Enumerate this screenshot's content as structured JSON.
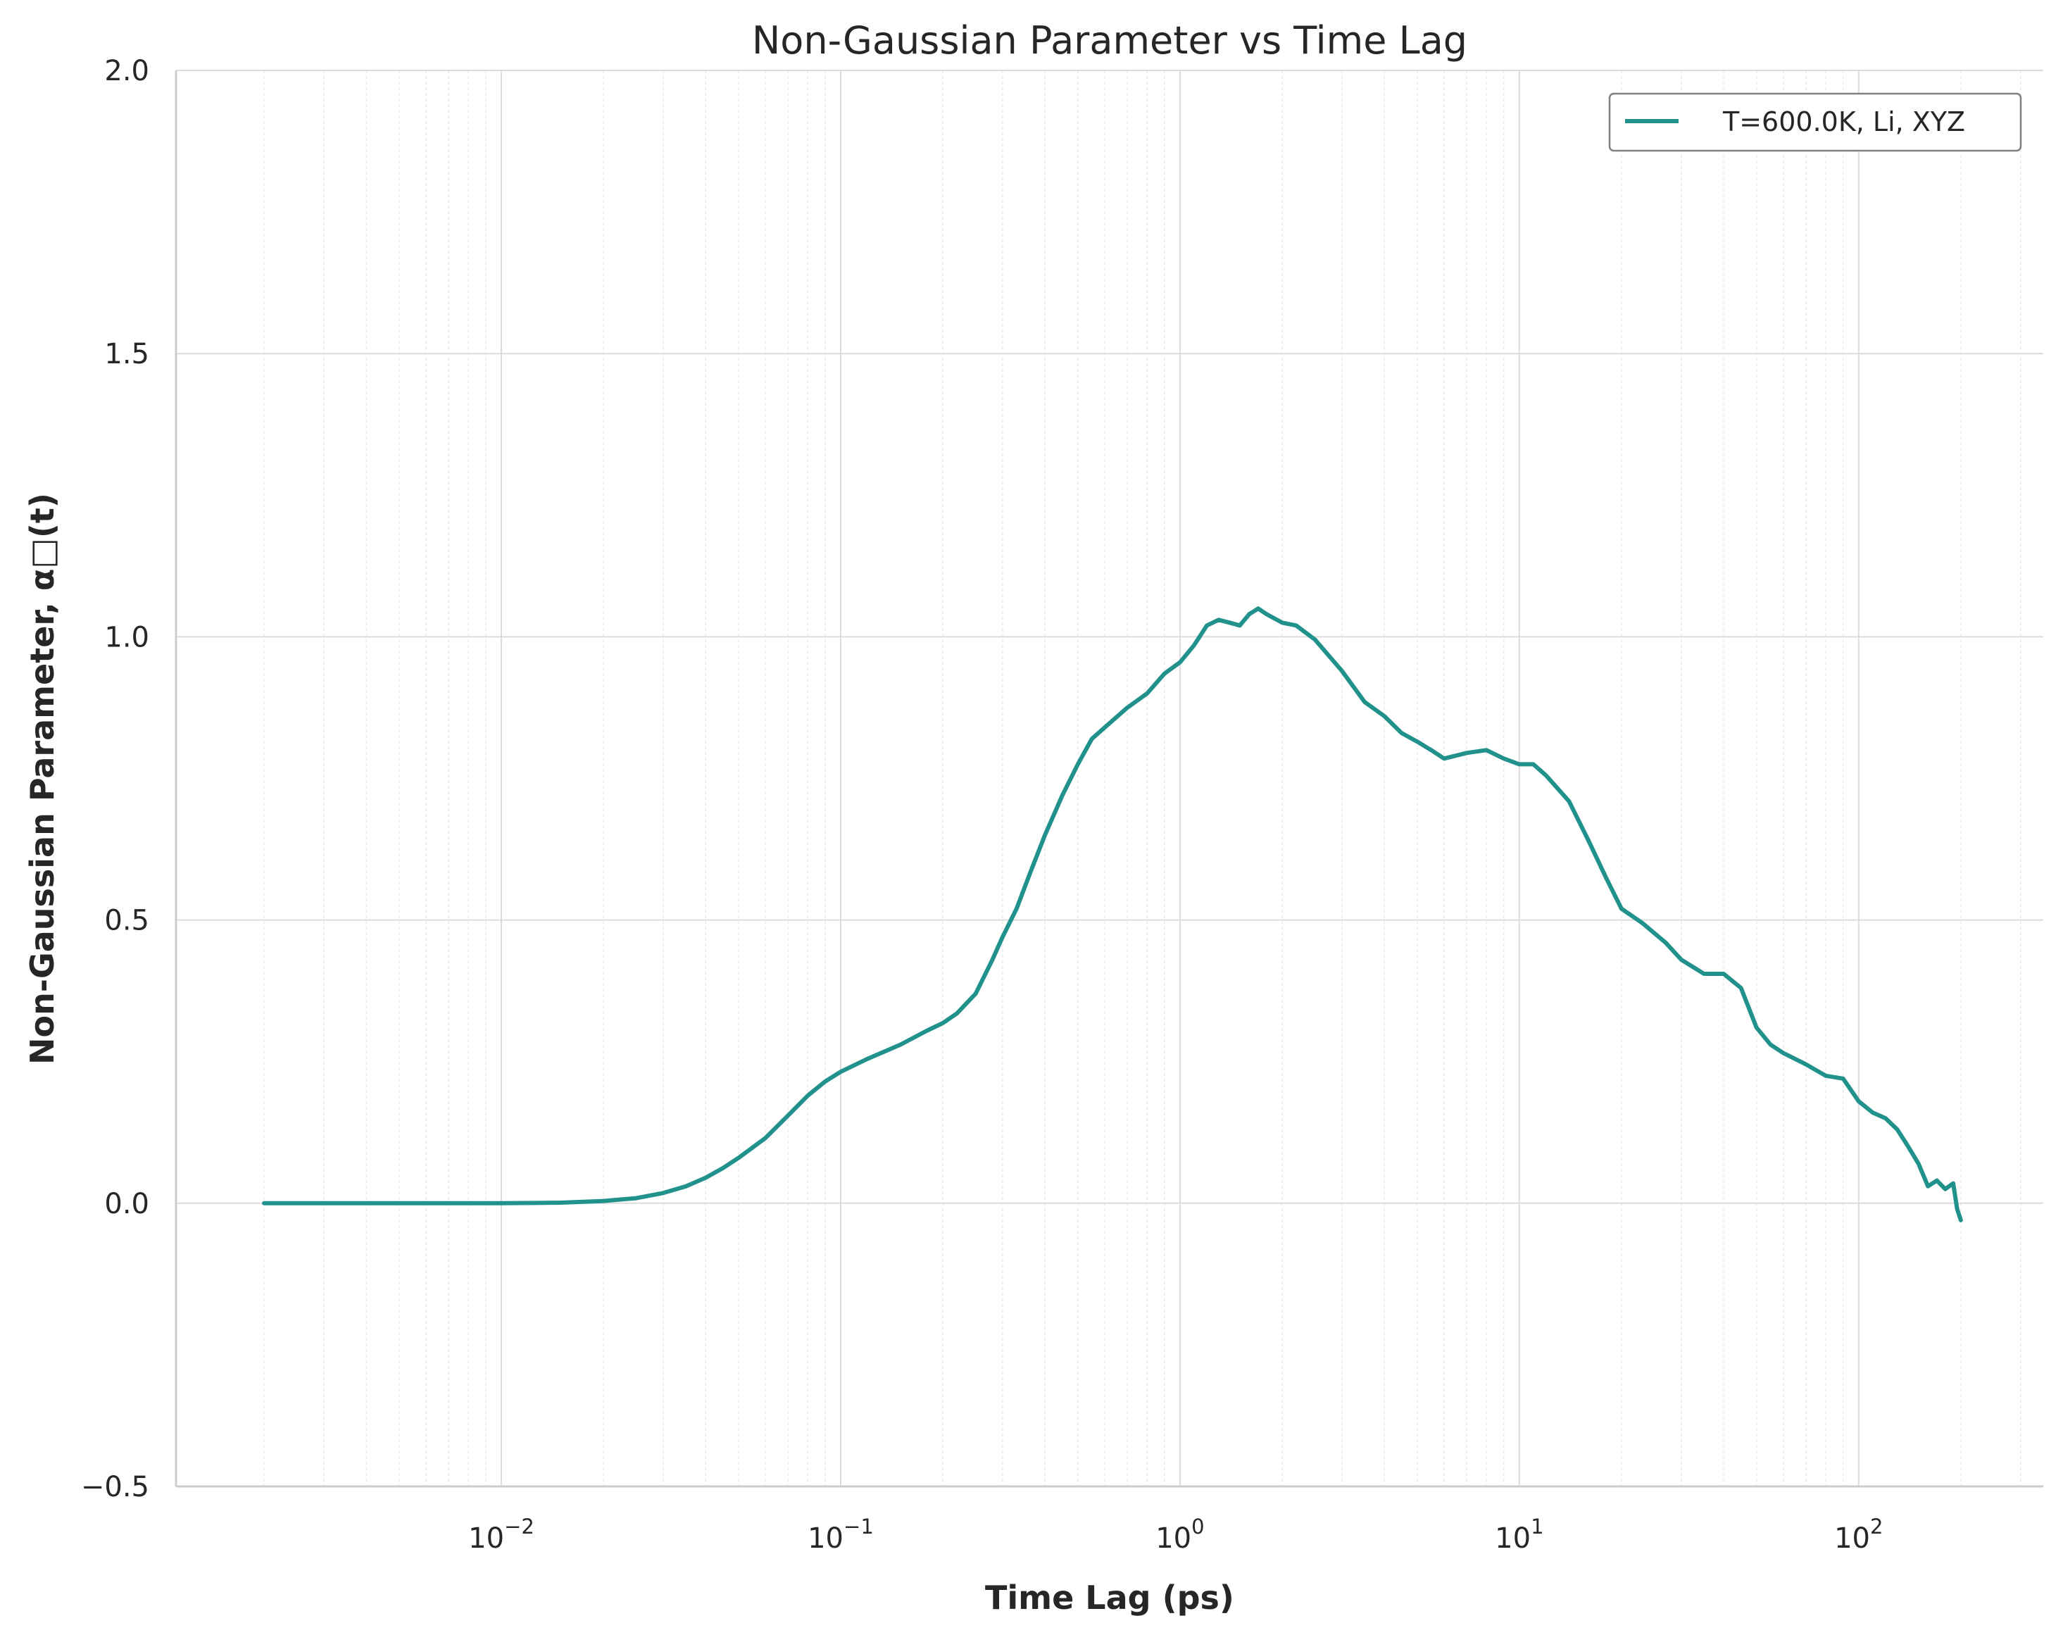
{
  "chart_data": {
    "type": "line",
    "title": "Non-Gaussian Parameter vs Time Lag",
    "xlabel": "Time Lag (ps)",
    "ylabel": "Non-Gaussian Parameter, α□(t)",
    "x_scale": "log",
    "xlim": [
      0.0011,
      350
    ],
    "ylim": [
      -0.5,
      2.0
    ],
    "grid": true,
    "legend_position": "top-right",
    "x_ticks": [
      {
        "base": "10",
        "exp": "−2",
        "value": 0.01
      },
      {
        "base": "10",
        "exp": "−1",
        "value": 0.1
      },
      {
        "base": "10",
        "exp": "0",
        "value": 1
      },
      {
        "base": "10",
        "exp": "1",
        "value": 10
      },
      {
        "base": "10",
        "exp": "2",
        "value": 100
      }
    ],
    "y_ticks": [
      {
        "label": "−0.5",
        "value": -0.5
      },
      {
        "label": "0.0",
        "value": 0.0
      },
      {
        "label": "0.5",
        "value": 0.5
      },
      {
        "label": "1.0",
        "value": 1.0
      },
      {
        "label": "1.5",
        "value": 1.5
      },
      {
        "label": "2.0",
        "value": 2.0
      }
    ],
    "series": [
      {
        "name": "T=600.0K, Li, XYZ",
        "color": "#21918c",
        "points": [
          [
            0.002,
            0.0
          ],
          [
            0.005,
            0.0
          ],
          [
            0.01,
            0.0
          ],
          [
            0.015,
            0.001
          ],
          [
            0.02,
            0.004
          ],
          [
            0.025,
            0.009
          ],
          [
            0.03,
            0.018
          ],
          [
            0.035,
            0.03
          ],
          [
            0.04,
            0.045
          ],
          [
            0.045,
            0.062
          ],
          [
            0.05,
            0.08
          ],
          [
            0.06,
            0.115
          ],
          [
            0.07,
            0.155
          ],
          [
            0.08,
            0.19
          ],
          [
            0.09,
            0.215
          ],
          [
            0.1,
            0.232
          ],
          [
            0.12,
            0.255
          ],
          [
            0.15,
            0.28
          ],
          [
            0.18,
            0.305
          ],
          [
            0.2,
            0.318
          ],
          [
            0.22,
            0.335
          ],
          [
            0.25,
            0.37
          ],
          [
            0.28,
            0.43
          ],
          [
            0.3,
            0.47
          ],
          [
            0.33,
            0.52
          ],
          [
            0.36,
            0.58
          ],
          [
            0.4,
            0.65
          ],
          [
            0.45,
            0.72
          ],
          [
            0.5,
            0.775
          ],
          [
            0.55,
            0.82
          ],
          [
            0.6,
            0.84
          ],
          [
            0.7,
            0.875
          ],
          [
            0.8,
            0.9
          ],
          [
            0.9,
            0.935
          ],
          [
            1.0,
            0.955
          ],
          [
            1.1,
            0.985
          ],
          [
            1.2,
            1.02
          ],
          [
            1.3,
            1.03
          ],
          [
            1.4,
            1.025
          ],
          [
            1.5,
            1.02
          ],
          [
            1.6,
            1.04
          ],
          [
            1.7,
            1.05
          ],
          [
            1.8,
            1.04
          ],
          [
            2.0,
            1.025
          ],
          [
            2.2,
            1.02
          ],
          [
            2.5,
            0.995
          ],
          [
            3.0,
            0.94
          ],
          [
            3.5,
            0.885
          ],
          [
            4.0,
            0.86
          ],
          [
            4.5,
            0.83
          ],
          [
            5.0,
            0.815
          ],
          [
            5.5,
            0.8
          ],
          [
            6.0,
            0.785
          ],
          [
            7.0,
            0.795
          ],
          [
            8.0,
            0.8
          ],
          [
            9.0,
            0.785
          ],
          [
            10.0,
            0.775
          ],
          [
            11.0,
            0.775
          ],
          [
            12.0,
            0.755
          ],
          [
            14.0,
            0.71
          ],
          [
            16.0,
            0.64
          ],
          [
            18.0,
            0.575
          ],
          [
            20.0,
            0.52
          ],
          [
            23.0,
            0.495
          ],
          [
            27.0,
            0.46
          ],
          [
            30.0,
            0.43
          ],
          [
            35.0,
            0.405
          ],
          [
            40.0,
            0.405
          ],
          [
            45.0,
            0.38
          ],
          [
            50.0,
            0.31
          ],
          [
            55.0,
            0.28
          ],
          [
            60.0,
            0.265
          ],
          [
            70.0,
            0.245
          ],
          [
            80.0,
            0.225
          ],
          [
            90.0,
            0.22
          ],
          [
            100.0,
            0.18
          ],
          [
            110.0,
            0.16
          ],
          [
            120.0,
            0.15
          ],
          [
            130.0,
            0.13
          ],
          [
            140.0,
            0.1
          ],
          [
            150.0,
            0.07
          ],
          [
            160.0,
            0.03
          ],
          [
            170.0,
            0.04
          ],
          [
            180.0,
            0.025
          ],
          [
            190.0,
            0.035
          ],
          [
            195.0,
            -0.01
          ],
          [
            200.0,
            -0.03
          ]
        ]
      }
    ]
  }
}
